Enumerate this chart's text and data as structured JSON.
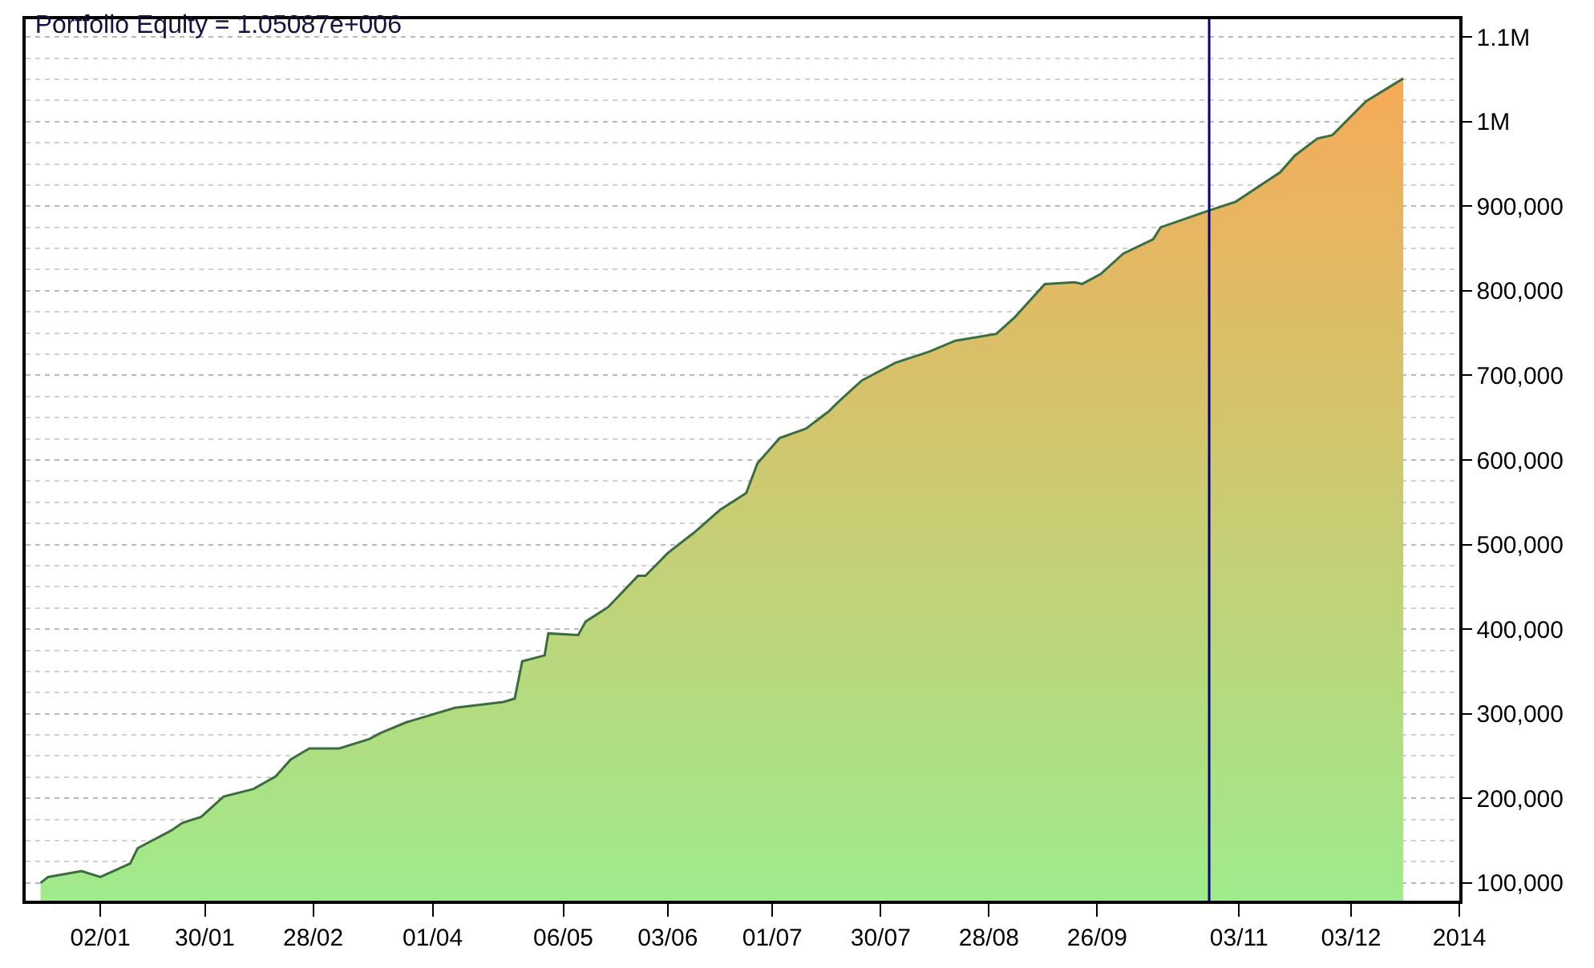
{
  "chart_data": {
    "type": "area",
    "title": "Portfolio Equity = 1.05087e+006",
    "x": [
      "2012-12-17",
      "2012-12-19",
      "2012-12-28",
      "2013-01-02",
      "2013-01-10",
      "2013-01-12",
      "2013-01-21",
      "2013-01-24",
      "2013-01-29",
      "2013-02-04",
      "2013-02-12",
      "2013-02-18",
      "2013-02-22",
      "2013-02-27",
      "2013-03-07",
      "2013-03-15",
      "2013-03-18",
      "2013-03-25",
      "2013-04-07",
      "2013-04-20",
      "2013-04-23",
      "2013-04-25",
      "2013-05-01",
      "2013-05-02",
      "2013-05-10",
      "2013-05-12",
      "2013-05-18",
      "2013-05-26",
      "2013-05-28",
      "2013-06-03",
      "2013-06-10",
      "2013-06-17",
      "2013-06-24",
      "2013-06-27",
      "2013-07-03",
      "2013-07-10",
      "2013-07-16",
      "2013-07-19",
      "2013-07-25",
      "2013-08-03",
      "2013-08-12",
      "2013-08-19",
      "2013-08-30",
      "2013-09-04",
      "2013-09-12",
      "2013-09-20",
      "2013-09-22",
      "2013-09-27",
      "2013-10-03",
      "2013-10-11",
      "2013-10-13",
      "2013-10-26",
      "2013-11-02",
      "2013-11-14",
      "2013-11-18",
      "2013-11-24",
      "2013-11-28",
      "2013-12-07",
      "2013-12-17"
    ],
    "series": [
      {
        "color": "#3c6e3c",
        "values": [
          100000,
          107000,
          114000,
          107000,
          123000,
          141000,
          162000,
          171000,
          178000,
          202000,
          211000,
          226000,
          246000,
          259000,
          259000,
          270000,
          277000,
          290000,
          307000,
          314000,
          318000,
          362000,
          369000,
          395000,
          393000,
          409000,
          426000,
          463000,
          463000,
          490000,
          514000,
          541000,
          561000,
          596000,
          626000,
          637000,
          657000,
          670000,
          694000,
          715000,
          728000,
          741000,
          749000,
          769000,
          808000,
          810000,
          808000,
          820000,
          844000,
          861000,
          875000,
          895000,
          905000,
          940000,
          960000,
          980000,
          984000,
          1024000,
          1051000
        ]
      }
    ],
    "xlim": [
      "2012-12-13",
      "2014-01-01"
    ],
    "xticks": [
      {
        "value": "2013-01-02",
        "label": "02/01"
      },
      {
        "value": "2013-01-30",
        "label": "30/01"
      },
      {
        "value": "2013-02-28",
        "label": "28/02"
      },
      {
        "value": "2013-04-01",
        "label": "01/04"
      },
      {
        "value": "2013-05-06",
        "label": "06/05"
      },
      {
        "value": "2013-06-03",
        "label": "03/06"
      },
      {
        "value": "2013-07-01",
        "label": "01/07"
      },
      {
        "value": "2013-07-30",
        "label": "30/07"
      },
      {
        "value": "2013-08-28",
        "label": "28/08"
      },
      {
        "value": "2013-09-26",
        "label": "26/09"
      },
      {
        "value": "2013-11-03",
        "label": "03/11"
      },
      {
        "value": "2013-12-03",
        "label": "03/12"
      },
      {
        "value": "2014-01-01",
        "label": "2014"
      }
    ],
    "ylim": [
      79000,
      1121000
    ],
    "yticks": [
      {
        "value": 100000,
        "label": "100,000"
      },
      {
        "value": 200000,
        "label": "200,000"
      },
      {
        "value": 300000,
        "label": "300,000"
      },
      {
        "value": 400000,
        "label": "400,000"
      },
      {
        "value": 500000,
        "label": "500,000"
      },
      {
        "value": 600000,
        "label": "600,000"
      },
      {
        "value": 700000,
        "label": "700,000"
      },
      {
        "value": 800000,
        "label": "800,000"
      },
      {
        "value": 900000,
        "label": "900,000"
      },
      {
        "value": 1000000,
        "label": "1M"
      },
      {
        "value": 1100000,
        "label": "1.1M"
      }
    ],
    "ref_lines": [
      {
        "axis": "x",
        "value": "2013-10-26",
        "color": "#000080"
      }
    ],
    "grid": "y"
  }
}
